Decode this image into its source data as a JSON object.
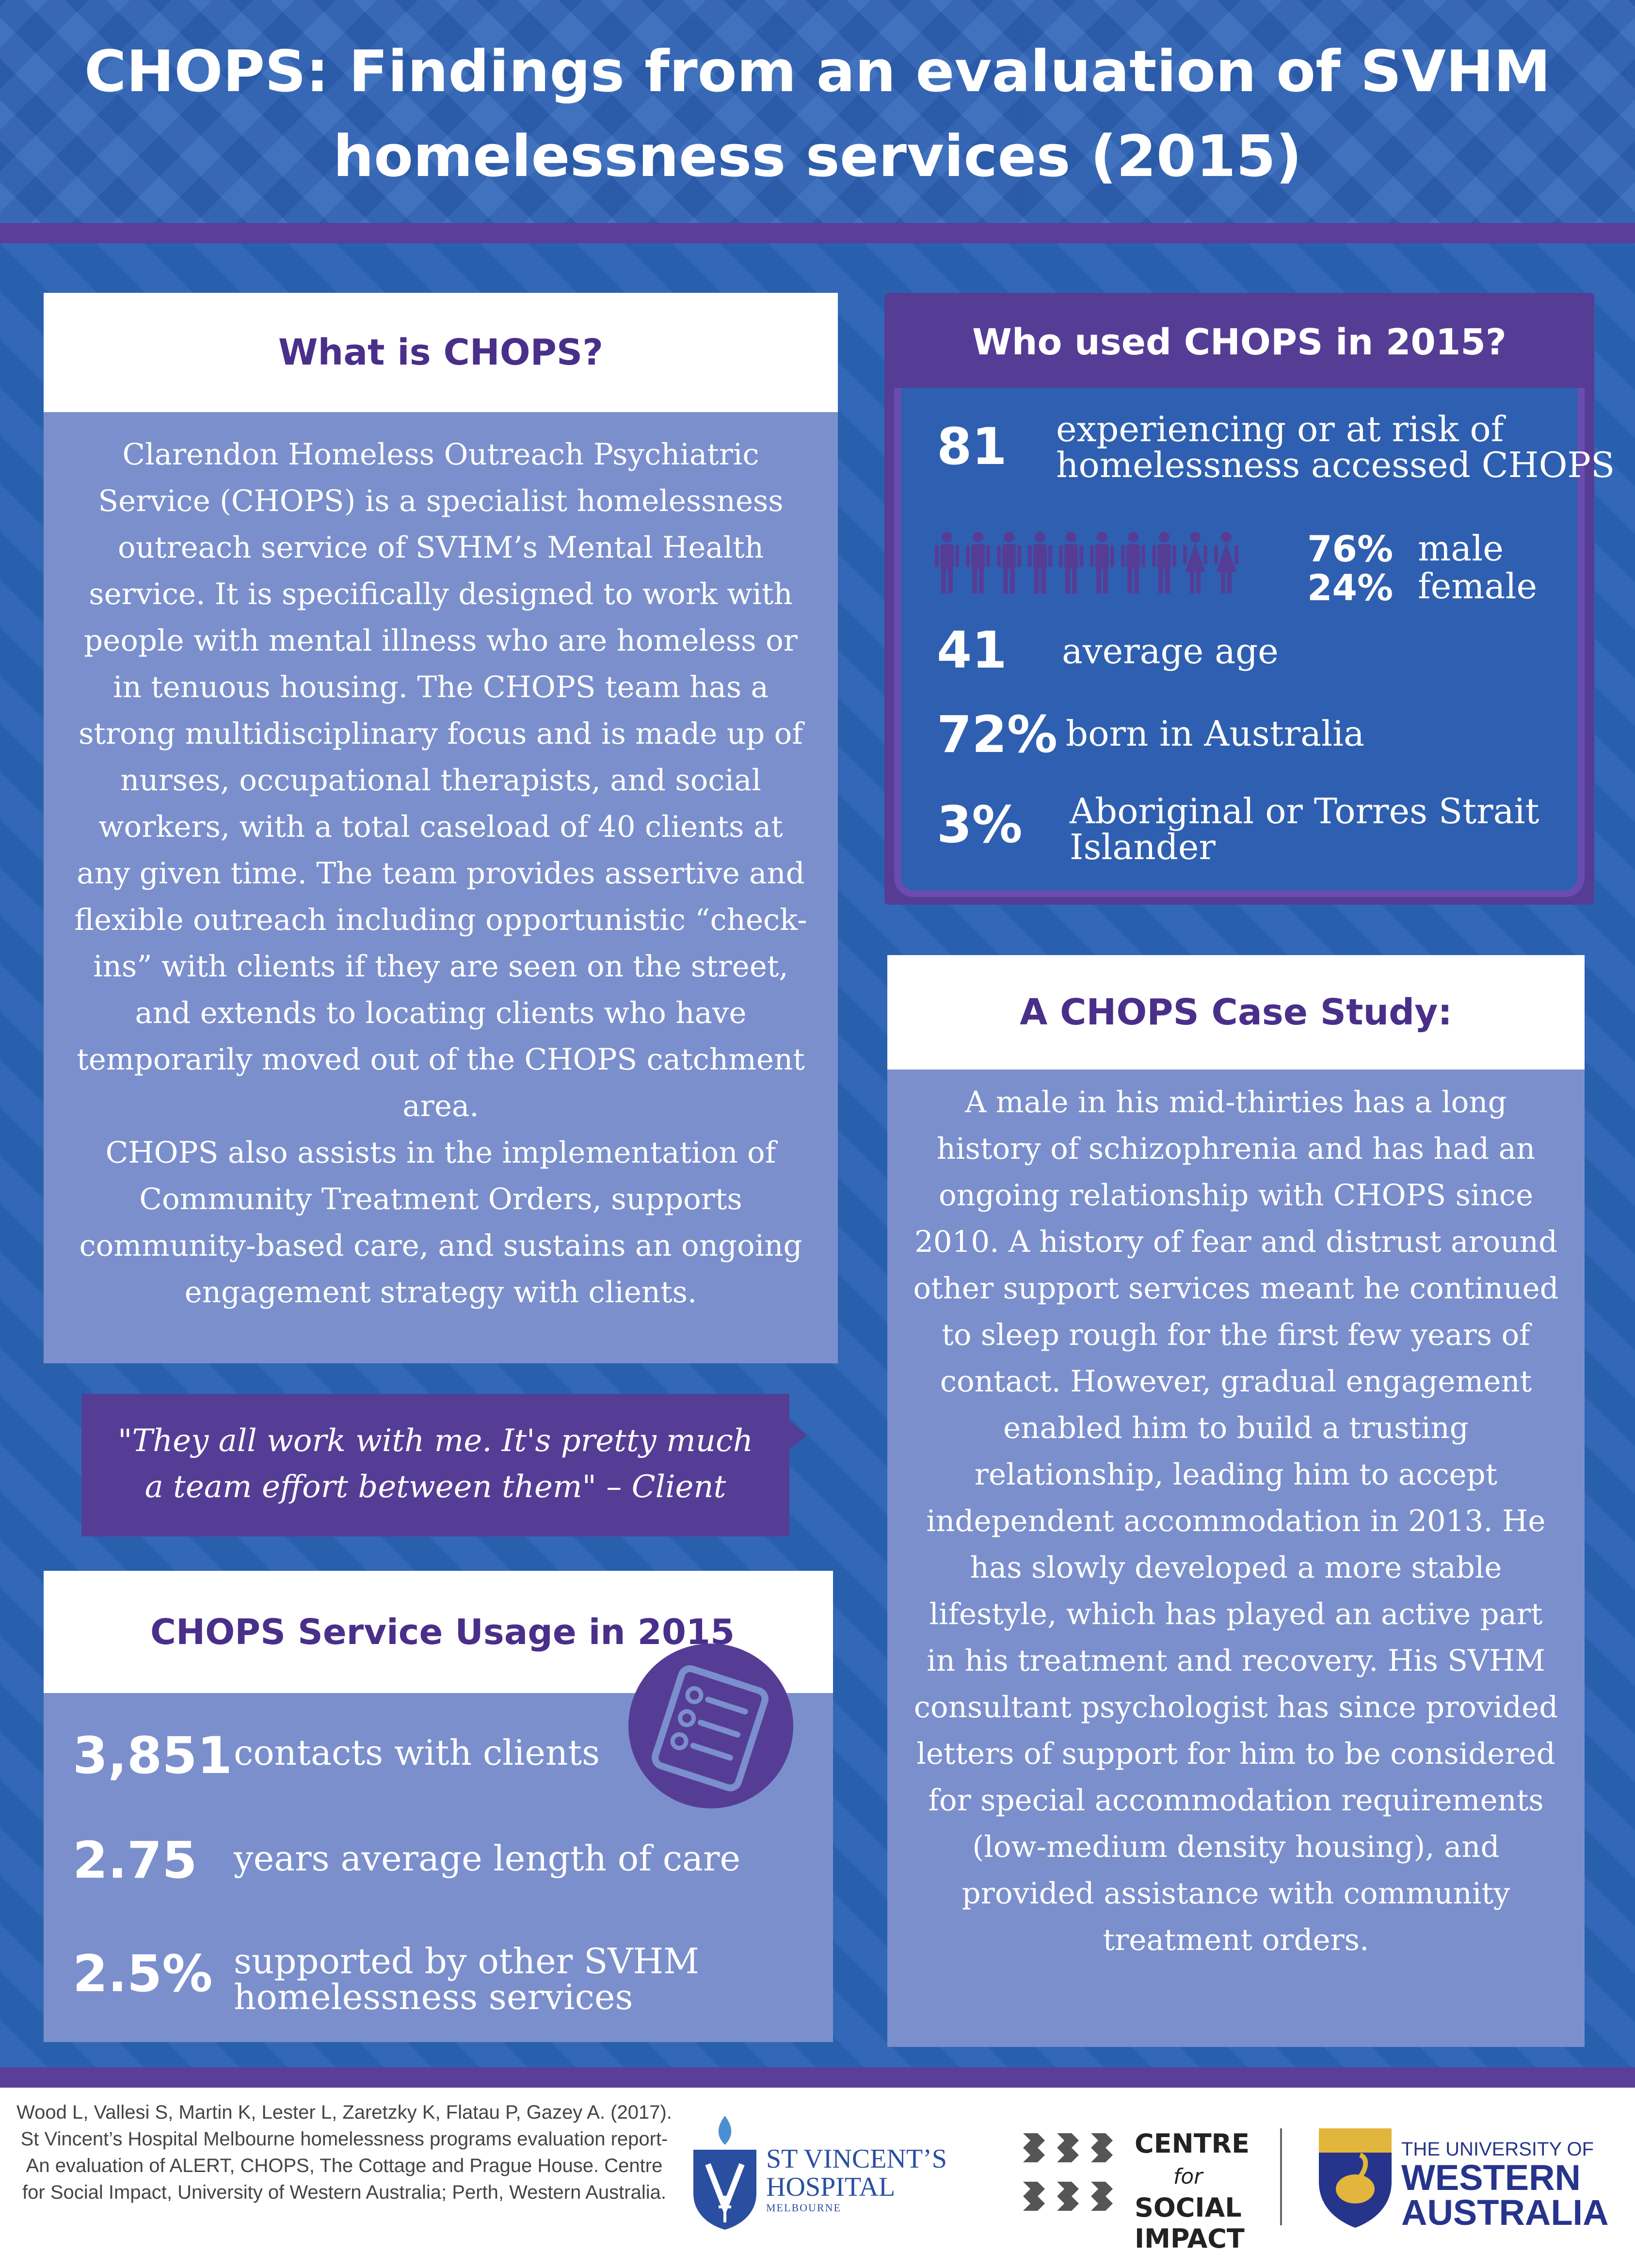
{
  "header": {
    "title_line1": "CHOPS: Findings from an evaluation of SVHM",
    "title_line2": "homelessness services (2015)"
  },
  "what_is": {
    "heading": "What is CHOPS?",
    "body": "Clarendon Homeless Outreach Psychiatric Service (CHOPS) is a specialist homelessness outreach service of SVHM’s Mental Health service. It is specifically designed to work with people with mental illness who are homeless or in tenuous housing. The CHOPS team has a strong multidisciplinary focus and is made up of nurses, occupational therapists, and social workers, with a total caseload of 40 clients at any given time. The team provides assertive and flexible outreach including opportunistic “check-ins” with clients if they are seen on the street, and extends to locating clients who have temporarily moved out of the CHOPS catchment area.",
    "body2": "CHOPS also assists in the implementation of Community Treatment Orders, supports community-based care, and sustains an ongoing engagement strategy with clients."
  },
  "quote": {
    "line1": "\"They all work with me. It's pretty much",
    "line2": "a team effort between them\" – Client"
  },
  "usage": {
    "heading": "CHOPS Service Usage in 2015",
    "icon": "checklist-icon",
    "stats": [
      {
        "value": "3,851",
        "label": "contacts with clients"
      },
      {
        "value": "2.75",
        "label": "years average length of care"
      },
      {
        "value": "2.5%",
        "label_line1": "supported by other SVHM",
        "label_line2": "homelessness services"
      }
    ]
  },
  "who_used": {
    "heading": "Who used CHOPS in 2015?",
    "total": {
      "value": "81",
      "label_line1": "experiencing or at risk of",
      "label_line2": "homelessness accessed CHOPS"
    },
    "gender": {
      "male_pct": "76%",
      "male_label": "male",
      "female_pct": "24%",
      "female_label": "female",
      "male_icons": 8,
      "female_icons": 2
    },
    "age": {
      "value": "41",
      "label": "average age"
    },
    "born": {
      "value": "72%",
      "label": "born in Australia"
    },
    "atsi": {
      "value": "3%",
      "label_line1": "Aboriginal or Torres Strait",
      "label_line2": "Islander"
    }
  },
  "case_study": {
    "heading": "A CHOPS Case Study:",
    "body": "A male in his mid-thirties has a long history of schizophrenia and has had an ongoing relationship with CHOPS since 2010. A history of fear and distrust around other support services meant he continued to sleep rough for the first few years of contact. However, gradual engagement enabled him to build a trusting relationship, leading him to accept independent accommodation in 2013. He has slowly developed a more stable lifestyle, which has played an active part in his treatment and recovery. His SVHM consultant psychologist has since provided letters of support for him to be considered for special accommodation requirements (low-medium density housing), and provided assistance with community treatment orders."
  },
  "footer": {
    "citation": "Wood L, Vallesi S, Martin K, Lester L, Zaretzky K, Flatau P, Gazey A. (2017). St Vincent’s Hospital Melbourne homelessness programs evaluation report- An evaluation of ALERT, CHOPS, The Cottage and Prague House. Centre for Social Impact, University of Western Australia; Perth, Western Australia.",
    "svhm_logo": {
      "line1": "ST VINCENT’S",
      "line2": "HOSPITAL",
      "line3": "MELBOURNE"
    },
    "csi_logo": {
      "line1": "CENTRE",
      "line2": "for",
      "line3": "SOCIAL",
      "line4": "IMPACT"
    },
    "uwa_logo": {
      "line1": "THE UNIVERSITY OF",
      "line2": "WESTERN",
      "line3": "AUSTRALIA"
    }
  },
  "colors": {
    "blue": "#2a63b4",
    "purple": "#553d96",
    "panel": "#7b8fcd",
    "heading_text": "#4a2f8a"
  }
}
